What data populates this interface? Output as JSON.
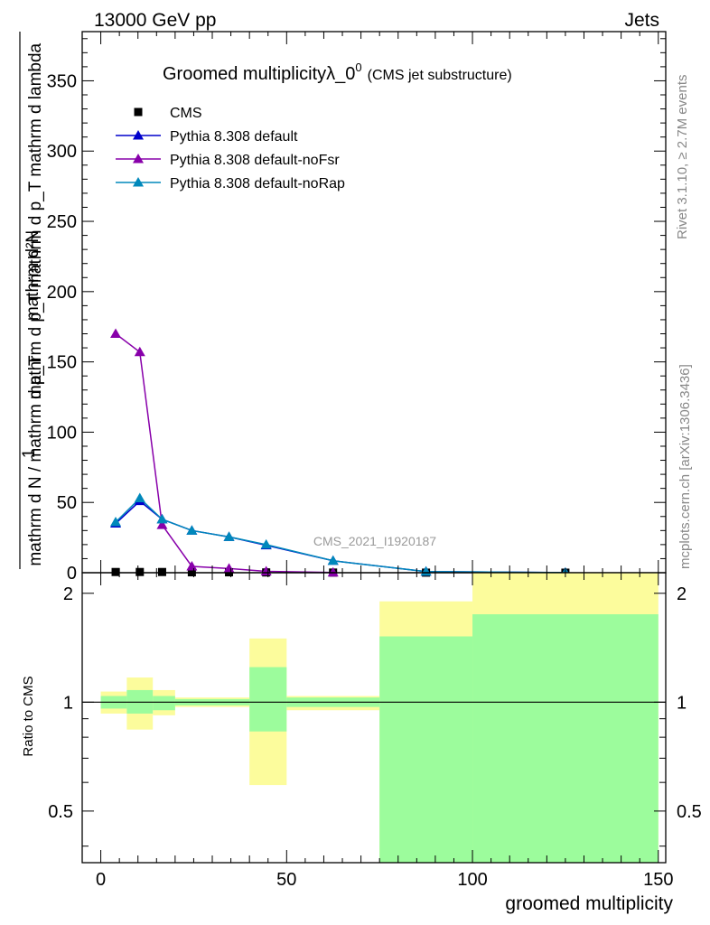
{
  "header": {
    "energy_label": "13000 GeV pp",
    "process_label": "Jets",
    "title_main": "Groomed multiplicity",
    "title_lambda": "λ_0",
    "title_sup": "0",
    "title_sub": "(CMS jet substructure)",
    "analysis_id": "CMS_2021_I1920187",
    "side_rivet": "Rivet 3.1.10, ≥ 2.7M events",
    "side_mcplots": "mcplots.cern.ch [arXiv:1306.3436]"
  },
  "chart_data": {
    "type": "line",
    "title": "Groomed multiplicityλ_0⁰ (CMS jet substructure)",
    "xlabel": "groomed multiplicity",
    "ylabel_top": {
      "numerator": "mathrm d²N",
      "denominator": "mathrm d p_T mathrm d p_T mathrm d lambda",
      "prefactor_num": "1",
      "prefactor_den": "mathrm d N / mathrm d p_T"
    },
    "xlim": [
      -5,
      152
    ],
    "ylim": [
      0,
      385
    ],
    "xticks": [
      0,
      50,
      100,
      150
    ],
    "yticks": [
      0,
      50,
      100,
      150,
      200,
      250,
      300,
      350
    ],
    "legend_position": "top-left",
    "series": [
      {
        "name": "CMS",
        "marker": "square",
        "color": "#000000",
        "x": [
          4,
          10.5,
          16.5,
          24.5,
          34.5,
          44.5,
          62.5,
          87.5,
          125
        ],
        "y": [
          0.5,
          0.5,
          0.5,
          0.3,
          0.3,
          0.2,
          0.1,
          0.05,
          0.02
        ]
      },
      {
        "name": "Pythia 8.308 default",
        "marker": "triangle",
        "color": "#0000cc",
        "x": [
          4,
          10.5,
          16.5,
          24.5,
          34.5,
          44.5,
          62.5,
          87.5,
          125
        ],
        "y": [
          35,
          51,
          38,
          30,
          25.5,
          19.5,
          8.5,
          0.8,
          0.1
        ]
      },
      {
        "name": "Pythia 8.308 default-noFsr",
        "marker": "triangle",
        "color": "#8800aa",
        "x": [
          4,
          10.5,
          16.5,
          24.5,
          34.5,
          44.5,
          62.5
        ],
        "y": [
          170,
          157,
          34,
          4.5,
          3,
          1,
          0.2
        ]
      },
      {
        "name": "Pythia 8.308 default-noRap",
        "marker": "triangle",
        "color": "#0088bb",
        "x": [
          4,
          10.5,
          16.5,
          24.5,
          34.5,
          44.5,
          62.5,
          87.5,
          125
        ],
        "y": [
          36,
          53,
          38,
          30,
          25.5,
          20,
          8.5,
          0.8,
          0.1
        ]
      }
    ],
    "ratio": {
      "ylabel": "Ratio to CMS",
      "ylim": [
        0.36,
        2.28
      ],
      "yticks": [
        0.5,
        1,
        2
      ],
      "reference": 1,
      "bins": [
        {
          "lo": 0,
          "hi": 7,
          "green": [
            0.96,
            1.04
          ],
          "yellow": [
            0.93,
            1.07
          ]
        },
        {
          "lo": 7,
          "hi": 14,
          "green": [
            0.93,
            1.08
          ],
          "yellow": [
            0.84,
            1.17
          ]
        },
        {
          "lo": 14,
          "hi": 20,
          "green": [
            0.95,
            1.04
          ],
          "yellow": [
            0.92,
            1.08
          ]
        },
        {
          "lo": 20,
          "hi": 40,
          "green": [
            0.98,
            1.02
          ],
          "yellow": [
            0.97,
            1.03
          ]
        },
        {
          "lo": 40,
          "hi": 50,
          "green": [
            0.83,
            1.25
          ],
          "yellow": [
            0.59,
            1.5
          ]
        },
        {
          "lo": 50,
          "hi": 75,
          "green": [
            0.97,
            1.03
          ],
          "yellow": [
            0.95,
            1.04
          ]
        },
        {
          "lo": 75,
          "hi": 100,
          "green": [
            0.36,
            1.52
          ],
          "yellow": [
            0.36,
            1.9
          ]
        },
        {
          "lo": 100,
          "hi": 150,
          "green": [
            0.36,
            1.75
          ],
          "yellow": [
            0.36,
            2.28
          ]
        }
      ]
    }
  },
  "colors": {
    "band_green": "#9cfc9c",
    "band_yellow": "#fcfc9c",
    "analysis_grey": "#9a9a9a",
    "side_grey": "#888888"
  }
}
